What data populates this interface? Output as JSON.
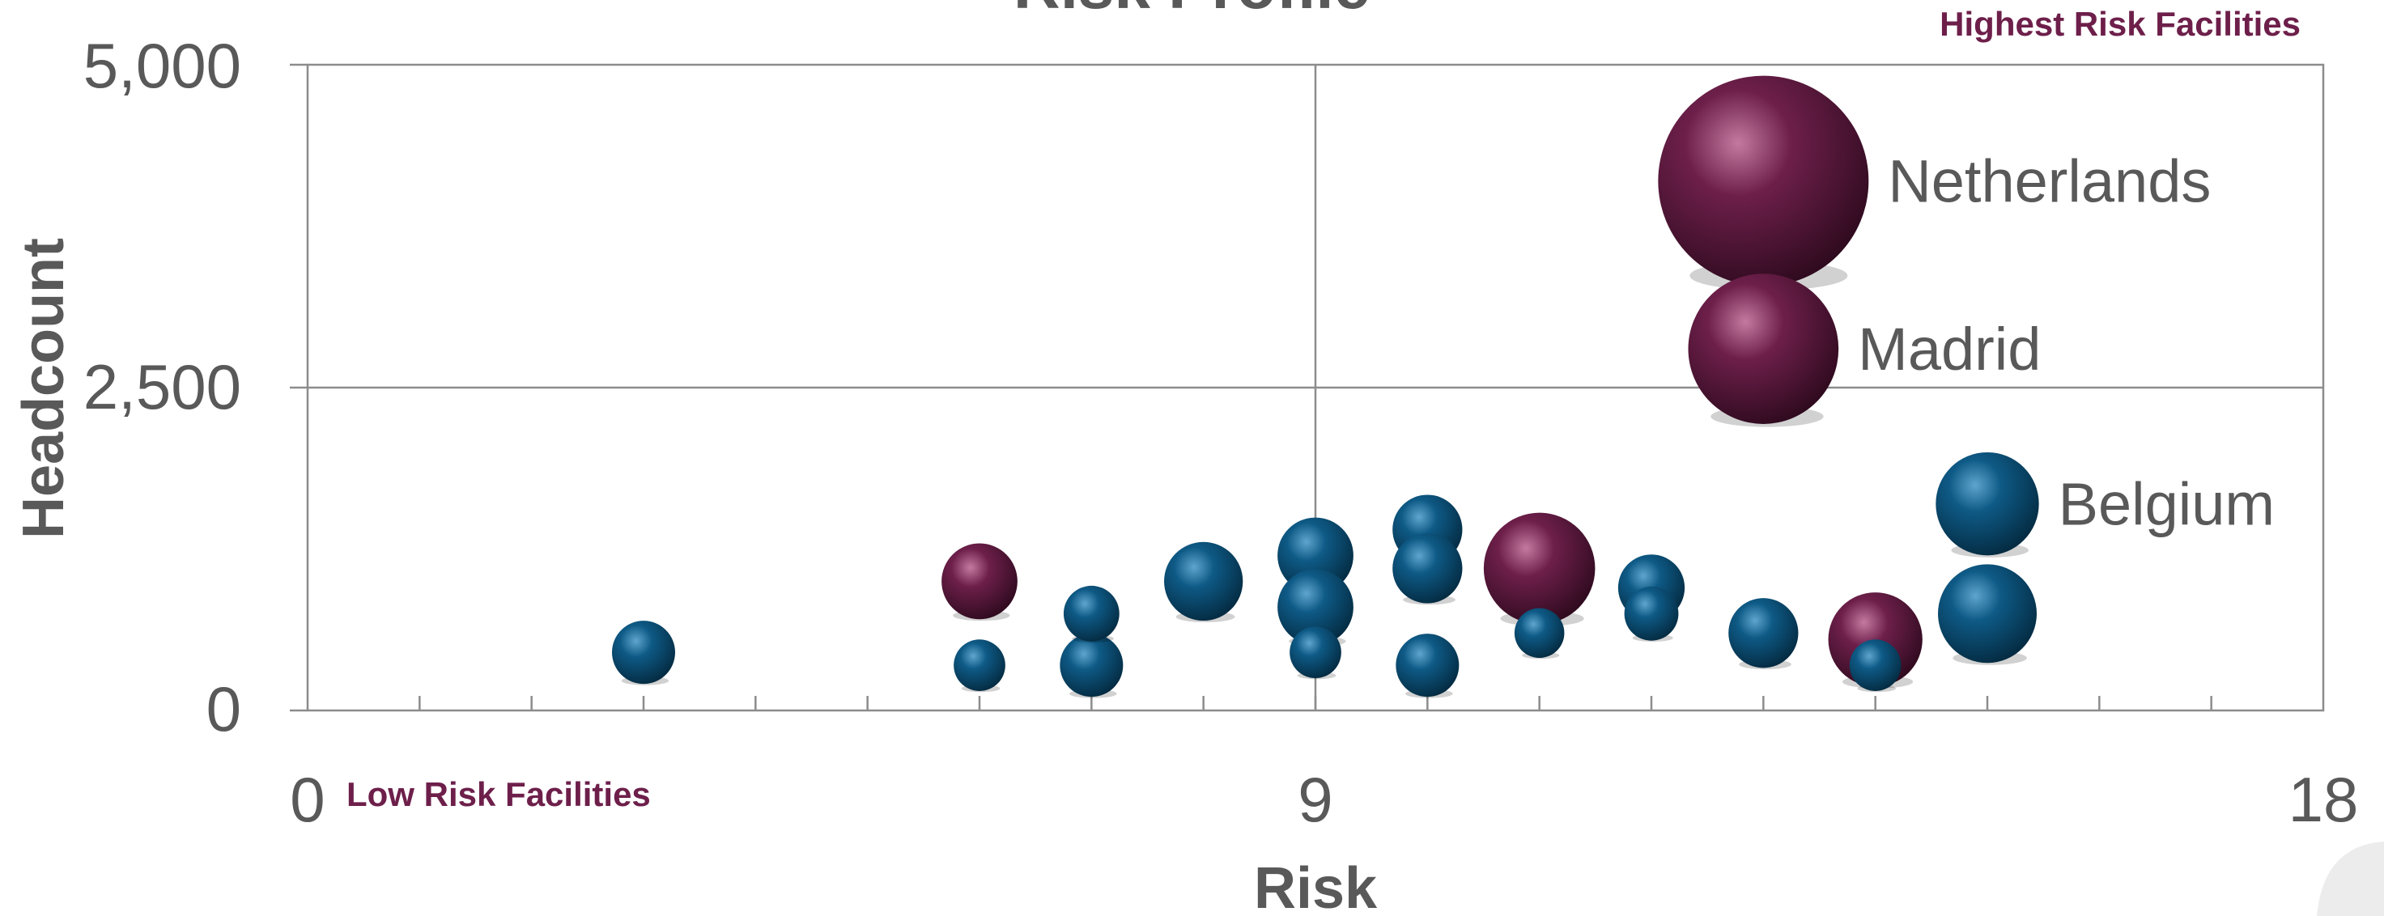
{
  "chart_data": {
    "type": "scatter",
    "subtype": "bubble",
    "title": "Risk Profile",
    "xlabel": "Risk",
    "ylabel": "Headcount",
    "xlim": [
      0,
      18
    ],
    "ylim": [
      0,
      5000
    ],
    "x_ticks": [
      "0",
      "9",
      "18"
    ],
    "y_ticks": [
      "0",
      "2,500",
      "5,000"
    ],
    "grid": "major lines at x=9 and y=2,500",
    "annotations": {
      "high": "Highest Risk Facilities",
      "low": "Low Risk Facilities"
    },
    "colors": {
      "blue": "#0e5a86",
      "purple": "#6d1f4a",
      "axis": "#8c8c8c"
    },
    "points": [
      {
        "x": 3.0,
        "y": 450,
        "size": 450,
        "color": "blue"
      },
      {
        "x": 6.0,
        "y": 1000,
        "size": 650,
        "color": "purple"
      },
      {
        "x": 6.0,
        "y": 350,
        "size": 300,
        "color": "blue"
      },
      {
        "x": 7.0,
        "y": 750,
        "size": 350,
        "color": "blue"
      },
      {
        "x": 7.0,
        "y": 350,
        "size": 450,
        "color": "blue"
      },
      {
        "x": 8.0,
        "y": 1000,
        "size": 700,
        "color": "blue"
      },
      {
        "x": 9.0,
        "y": 1200,
        "size": 650,
        "color": "blue"
      },
      {
        "x": 9.0,
        "y": 800,
        "size": 650,
        "color": "blue"
      },
      {
        "x": 9.0,
        "y": 450,
        "size": 300,
        "color": "blue"
      },
      {
        "x": 10.0,
        "y": 1400,
        "size": 550,
        "color": "blue"
      },
      {
        "x": 10.0,
        "y": 1100,
        "size": 550,
        "color": "blue"
      },
      {
        "x": 10.0,
        "y": 350,
        "size": 450,
        "color": "blue"
      },
      {
        "x": 11.0,
        "y": 1100,
        "size": 1400,
        "color": "purple"
      },
      {
        "x": 11.0,
        "y": 600,
        "size": 280,
        "color": "blue"
      },
      {
        "x": 12.0,
        "y": 950,
        "size": 500,
        "color": "blue"
      },
      {
        "x": 12.0,
        "y": 750,
        "size": 330,
        "color": "blue"
      },
      {
        "x": 13.0,
        "y": 4100,
        "size": 5000,
        "color": "purple",
        "label": "Netherlands"
      },
      {
        "x": 13.0,
        "y": 2800,
        "size": 2550,
        "color": "purple",
        "label": "Madrid"
      },
      {
        "x": 13.0,
        "y": 600,
        "size": 550,
        "color": "blue"
      },
      {
        "x": 14.0,
        "y": 550,
        "size": 1000,
        "color": "purple"
      },
      {
        "x": 14.0,
        "y": 350,
        "size": 300,
        "color": "blue"
      },
      {
        "x": 15.0,
        "y": 1600,
        "size": 1200,
        "color": "blue",
        "label": "Belgium"
      },
      {
        "x": 15.0,
        "y": 750,
        "size": 1100,
        "color": "blue"
      }
    ]
  }
}
